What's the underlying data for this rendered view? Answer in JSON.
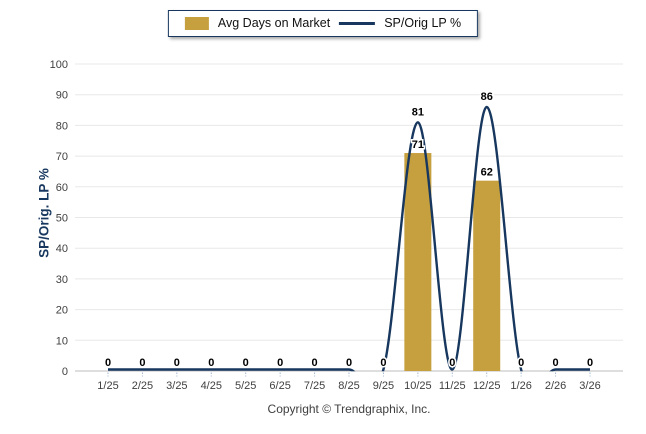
{
  "legend": {
    "bar_label": "Avg Days on Market",
    "line_label": "SP/Orig LP %"
  },
  "footer": {
    "copyright": "Copyright © Trendgraphix, Inc."
  },
  "colors": {
    "bar": "#C6A03E",
    "line": "#17375E",
    "grid": "#E8E8E8",
    "axis_line": "#C9C9C9",
    "tick_mark": "#9FB6D4",
    "axis_text": "#3F3F3F",
    "data_label": "#000000",
    "accent_navy": "#17375E"
  },
  "chart_data": {
    "type": "bar+line",
    "categories": [
      "1/25",
      "2/25",
      "3/25",
      "4/25",
      "5/25",
      "6/25",
      "7/25",
      "8/25",
      "9/25",
      "10/25",
      "11/25",
      "12/25",
      "1/26",
      "2/26",
      "3/26"
    ],
    "series": [
      {
        "name": "Avg Days on Market",
        "type": "bar",
        "values": [
          0,
          0,
          0,
          0,
          0,
          0,
          0,
          0,
          0,
          71,
          0,
          62,
          0,
          0,
          0
        ]
      },
      {
        "name": "SP/Orig LP %",
        "type": "line",
        "values": [
          0,
          0,
          0,
          0,
          0,
          0,
          0,
          0,
          0,
          81,
          0,
          86,
          0,
          0,
          0
        ]
      }
    ],
    "title": "",
    "xlabel": "",
    "ylabel": "SP/Orig. LP %",
    "ylim": [
      0,
      100
    ],
    "ytick_step": 10,
    "grid": "horizontal",
    "legend_position": "top"
  }
}
